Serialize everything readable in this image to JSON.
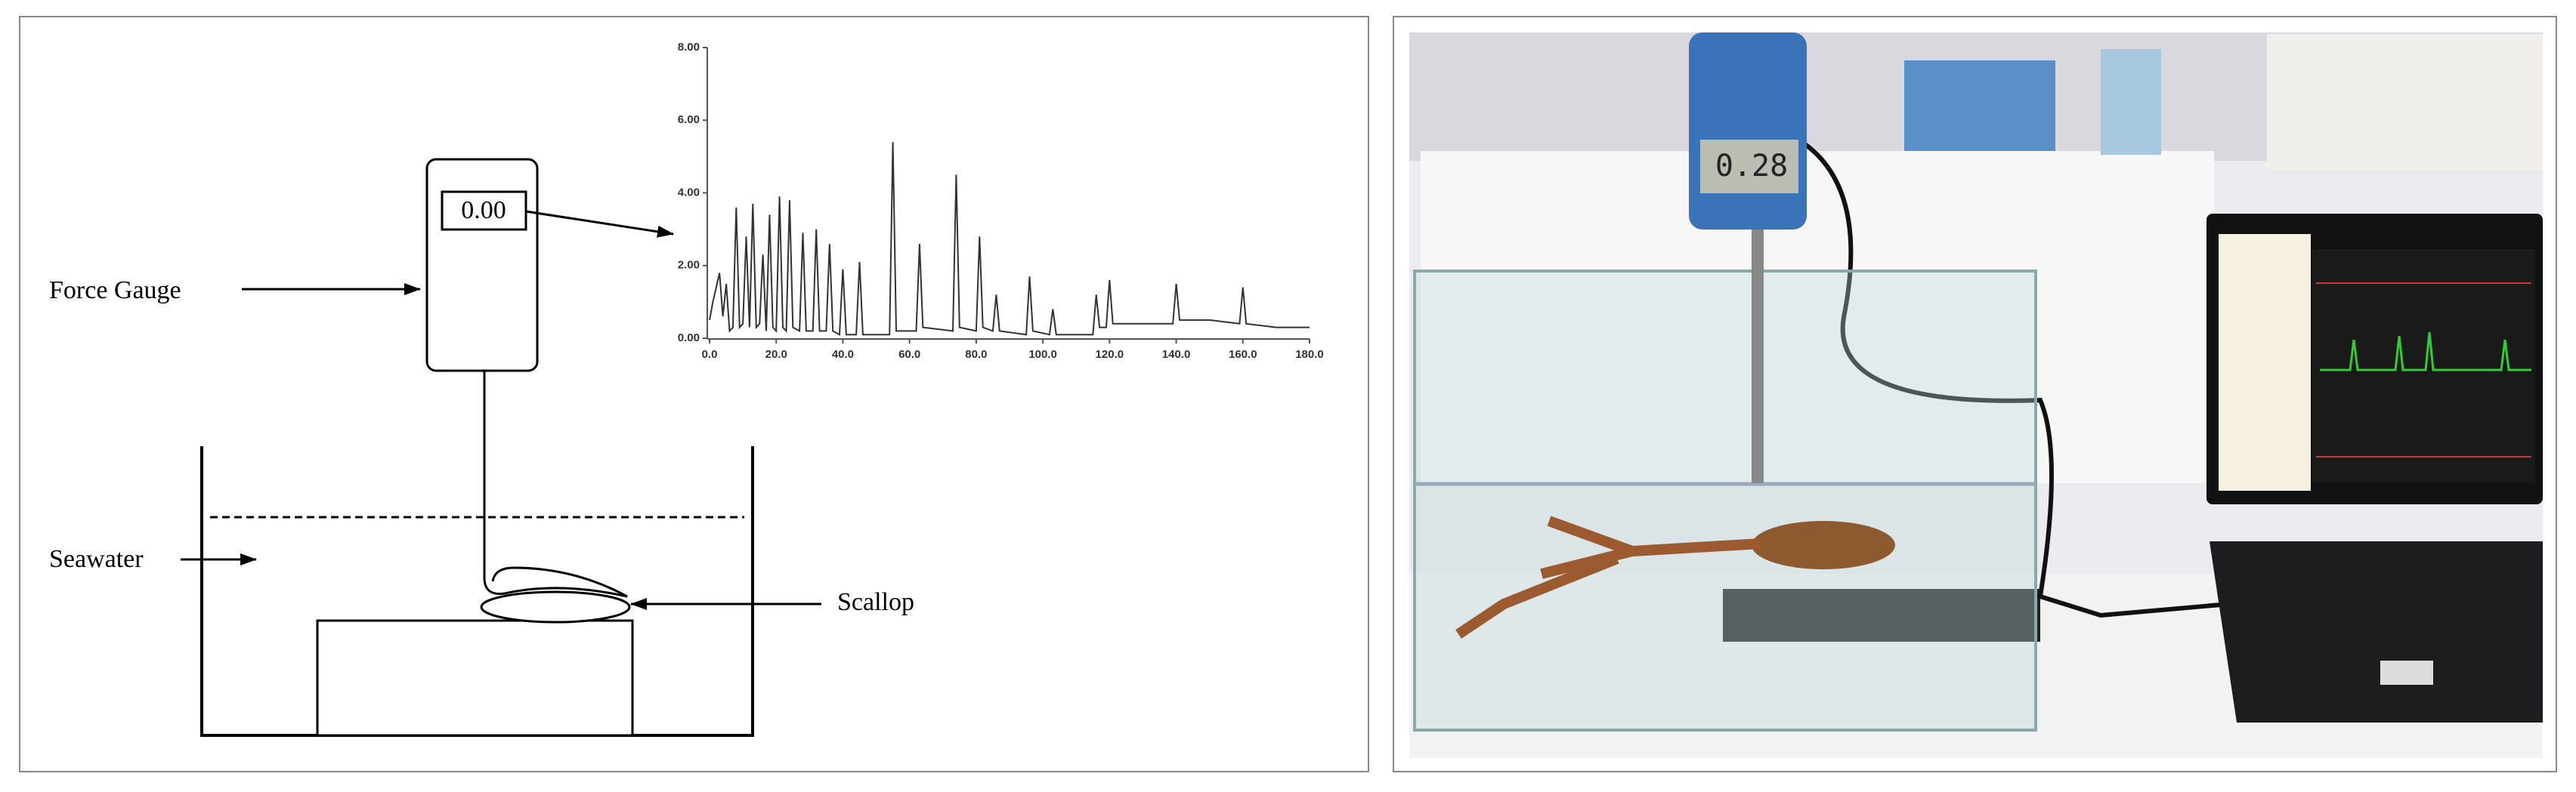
{
  "diagram": {
    "labels": {
      "force_gauge": "Force Gauge",
      "seawater": "Seawater",
      "scallop": "Scallop",
      "gauge_display": "0.00"
    },
    "chart": {
      "type": "line",
      "color": "#333333",
      "xlim": [
        0,
        180
      ],
      "ylim": [
        0,
        8
      ],
      "xticks": [
        {
          "value": 0,
          "label": "0.0"
        },
        {
          "value": 20,
          "label": "20.0"
        },
        {
          "value": 40,
          "label": "40.0"
        },
        {
          "value": 60,
          "label": "60.0"
        },
        {
          "value": 80,
          "label": "80.0"
        },
        {
          "value": 100,
          "label": "100.0"
        },
        {
          "value": 120,
          "label": "120.0"
        },
        {
          "value": 140,
          "label": "140.0"
        },
        {
          "value": 160,
          "label": "160.0"
        },
        {
          "value": 180,
          "label": "180.0"
        }
      ],
      "yticks": [
        {
          "value": 0,
          "label": "0.00"
        },
        {
          "value": 2,
          "label": "2.00"
        },
        {
          "value": 4,
          "label": "4.00"
        },
        {
          "value": 6,
          "label": "6.00"
        },
        {
          "value": 8,
          "label": "8.00"
        }
      ],
      "x": [
        0,
        1,
        3,
        4,
        5,
        6,
        7,
        8,
        9,
        10,
        11,
        12,
        13,
        14,
        15,
        16,
        17,
        18,
        19,
        20,
        21,
        22,
        23,
        24,
        25,
        27,
        28,
        29,
        31,
        32,
        33,
        35,
        36,
        37,
        39,
        40,
        41,
        44,
        45,
        46,
        54,
        55,
        56,
        62,
        63,
        64,
        73,
        74,
        75,
        80,
        81,
        82,
        85,
        86,
        87,
        95,
        96,
        97,
        102,
        103,
        104,
        115,
        116,
        117,
        119,
        120,
        121,
        130,
        139,
        140,
        141,
        150,
        159,
        160,
        161,
        170,
        180
      ],
      "values": [
        0.5,
        1.0,
        1.8,
        0.6,
        1.5,
        0.2,
        0.3,
        3.6,
        0.3,
        0.4,
        2.8,
        0.3,
        3.7,
        0.3,
        0.4,
        2.3,
        0.2,
        3.4,
        0.3,
        0.2,
        3.9,
        0.3,
        0.2,
        3.8,
        0.3,
        0.2,
        2.9,
        0.2,
        0.2,
        3.0,
        0.2,
        0.2,
        2.6,
        0.2,
        0.1,
        1.9,
        0.1,
        0.1,
        2.1,
        0.1,
        0.1,
        5.4,
        0.2,
        0.2,
        2.6,
        0.3,
        0.2,
        4.5,
        0.3,
        0.2,
        2.8,
        0.3,
        0.2,
        1.2,
        0.2,
        0.1,
        1.7,
        0.2,
        0.1,
        0.8,
        0.1,
        0.1,
        1.2,
        0.3,
        0.3,
        1.6,
        0.4,
        0.4,
        0.4,
        1.5,
        0.5,
        0.5,
        0.4,
        1.4,
        0.4,
        0.3,
        0.3
      ]
    }
  },
  "photo": {
    "gauge_reading": "0.28"
  }
}
